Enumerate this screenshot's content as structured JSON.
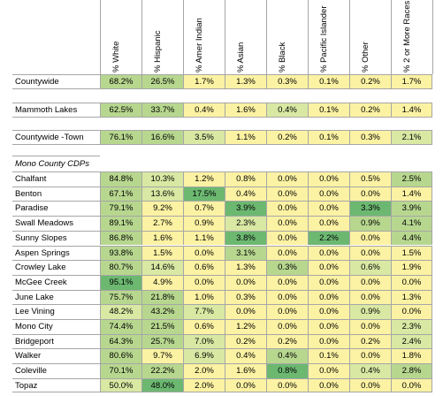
{
  "columns": [
    "% White",
    "% Hispanic",
    "% Amer Indian",
    "% Asian",
    "% Black",
    "% Pacific Islander",
    "% Other",
    "% 2 or More Races"
  ],
  "colors": {
    "light_yellow": "#fcf2a3",
    "pale_green": "#d9e8a3",
    "light_green": "#b7d78f",
    "mid_green": "#92c77f",
    "green": "#6cb871"
  },
  "rows": [
    {
      "label": "Countywide",
      "values": [
        "68.2%",
        "26.5%",
        "1.7%",
        "1.3%",
        "0.3%",
        "0.1%",
        "0.2%",
        "1.7%"
      ]
    },
    {
      "label": "Mammoth Lakes",
      "values": [
        "62.5%",
        "33.7%",
        "0.4%",
        "1.6%",
        "0.4%",
        "0.1%",
        "0.2%",
        "1.4%"
      ]
    },
    {
      "label": "Countywide -Town",
      "values": [
        "76.1%",
        "16.6%",
        "3.5%",
        "1.1%",
        "0.2%",
        "0.1%",
        "0.3%",
        "2.1%"
      ]
    }
  ],
  "section_title": "Mono County CDPs",
  "cdps": [
    {
      "label": "Chalfant",
      "values": [
        "84.8%",
        "10.3%",
        "1.2%",
        "0.8%",
        "0.0%",
        "0.0%",
        "0.5%",
        "2.5%"
      ]
    },
    {
      "label": "Benton",
      "values": [
        "67.1%",
        "13.6%",
        "17.5%",
        "0.4%",
        "0.0%",
        "0.0%",
        "0.0%",
        "1.4%"
      ]
    },
    {
      "label": "Paradise",
      "values": [
        "79.1%",
        "9.2%",
        "0.7%",
        "3.9%",
        "0.0%",
        "0.0%",
        "3.3%",
        "3.9%"
      ]
    },
    {
      "label": "Swall Meadows",
      "values": [
        "89.1%",
        "2.7%",
        "0.9%",
        "2.3%",
        "0.0%",
        "0.0%",
        "0.9%",
        "4.1%"
      ]
    },
    {
      "label": "Sunny Slopes",
      "values": [
        "86.8%",
        "1.6%",
        "1.1%",
        "3.8%",
        "0.0%",
        "2.2%",
        "0.0%",
        "4.4%"
      ]
    },
    {
      "label": "Aspen Springs",
      "values": [
        "93.8%",
        "1.5%",
        "0.0%",
        "3.1%",
        "0.0%",
        "0.0%",
        "0.0%",
        "1.5%"
      ]
    },
    {
      "label": "Crowley Lake",
      "values": [
        "80.7%",
        "14.6%",
        "0.6%",
        "1.3%",
        "0.3%",
        "0.0%",
        "0.6%",
        "1.9%"
      ]
    },
    {
      "label": "McGee Creek",
      "values": [
        "95.1%",
        "4.9%",
        "0.0%",
        "0.0%",
        "0.0%",
        "0.0%",
        "0.0%",
        "0.0%"
      ]
    },
    {
      "label": "June Lake",
      "values": [
        "75.7%",
        "21.8%",
        "1.0%",
        "0.3%",
        "0.0%",
        "0.0%",
        "0.0%",
        "1.3%"
      ]
    },
    {
      "label": "Lee Vining",
      "values": [
        "48.2%",
        "43.2%",
        "7.7%",
        "0.0%",
        "0.0%",
        "0.0%",
        "0.9%",
        "0.0%"
      ]
    },
    {
      "label": "Mono City",
      "values": [
        "74.4%",
        "21.5%",
        "0.6%",
        "1.2%",
        "0.0%",
        "0.0%",
        "0.0%",
        "2.3%"
      ]
    },
    {
      "label": "Bridgeport",
      "values": [
        "64.3%",
        "25.7%",
        "7.0%",
        "0.2%",
        "0.2%",
        "0.0%",
        "0.2%",
        "2.4%"
      ]
    },
    {
      "label": "Walker",
      "values": [
        "80.6%",
        "9.7%",
        "6.9%",
        "0.4%",
        "0.4%",
        "0.1%",
        "0.0%",
        "1.8%"
      ]
    },
    {
      "label": "Coleville",
      "values": [
        "70.1%",
        "22.2%",
        "2.0%",
        "1.6%",
        "0.8%",
        "0.0%",
        "0.4%",
        "2.8%"
      ]
    },
    {
      "label": "Topaz",
      "values": [
        "50.0%",
        "48.0%",
        "2.0%",
        "0.0%",
        "0.0%",
        "0.0%",
        "0.0%",
        "0.0%"
      ]
    }
  ],
  "cell_colors": {
    "rows": [
      [
        "light_green",
        "light_green",
        "light_yellow",
        "light_yellow",
        "light_yellow",
        "light_yellow",
        "light_yellow",
        "light_yellow"
      ],
      [
        "light_green",
        "light_green",
        "light_yellow",
        "light_yellow",
        "pale_green",
        "light_yellow",
        "light_yellow",
        "light_yellow"
      ],
      [
        "light_green",
        "light_green",
        "pale_green",
        "light_yellow",
        "light_yellow",
        "light_yellow",
        "light_yellow",
        "pale_green"
      ]
    ],
    "cdps": [
      [
        "light_green",
        "pale_green",
        "light_yellow",
        "light_yellow",
        "light_yellow",
        "light_yellow",
        "light_yellow",
        "light_green"
      ],
      [
        "light_green",
        "pale_green",
        "green",
        "light_yellow",
        "light_yellow",
        "light_yellow",
        "light_yellow",
        "light_yellow"
      ],
      [
        "light_green",
        "light_yellow",
        "light_yellow",
        "green",
        "light_yellow",
        "light_yellow",
        "green",
        "light_green"
      ],
      [
        "light_green",
        "light_yellow",
        "light_yellow",
        "pale_green",
        "light_yellow",
        "light_yellow",
        "light_green",
        "light_green"
      ],
      [
        "light_green",
        "light_yellow",
        "light_yellow",
        "green",
        "light_yellow",
        "green",
        "light_yellow",
        "light_green"
      ],
      [
        "light_green",
        "light_yellow",
        "light_yellow",
        "light_green",
        "light_yellow",
        "light_yellow",
        "light_yellow",
        "light_yellow"
      ],
      [
        "light_green",
        "pale_green",
        "light_yellow",
        "light_yellow",
        "light_green",
        "light_yellow",
        "pale_green",
        "light_yellow"
      ],
      [
        "green",
        "light_yellow",
        "light_yellow",
        "light_yellow",
        "light_yellow",
        "light_yellow",
        "light_yellow",
        "light_yellow"
      ],
      [
        "light_green",
        "light_green",
        "light_yellow",
        "light_yellow",
        "light_yellow",
        "light_yellow",
        "light_yellow",
        "light_yellow"
      ],
      [
        "pale_green",
        "light_green",
        "pale_green",
        "light_yellow",
        "light_yellow",
        "light_yellow",
        "pale_green",
        "light_yellow"
      ],
      [
        "light_green",
        "light_green",
        "light_yellow",
        "light_yellow",
        "light_yellow",
        "light_yellow",
        "light_yellow",
        "pale_green"
      ],
      [
        "light_green",
        "light_green",
        "pale_green",
        "light_yellow",
        "light_yellow",
        "light_yellow",
        "light_yellow",
        "pale_green"
      ],
      [
        "light_green",
        "light_yellow",
        "pale_green",
        "light_yellow",
        "light_green",
        "light_yellow",
        "light_yellow",
        "light_yellow"
      ],
      [
        "light_green",
        "light_green",
        "light_yellow",
        "light_yellow",
        "green",
        "light_yellow",
        "pale_green",
        "light_green"
      ],
      [
        "pale_green",
        "green",
        "light_yellow",
        "light_yellow",
        "light_yellow",
        "light_yellow",
        "light_yellow",
        "light_yellow"
      ]
    ]
  }
}
